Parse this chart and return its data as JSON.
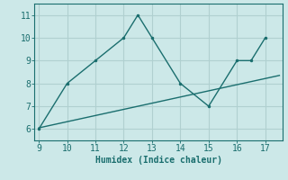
{
  "xlabel": "Humidex (Indice chaleur)",
  "bg_color": "#cce8e8",
  "grid_color": "#b0d0d0",
  "line_color": "#1a6e6e",
  "line1_x": [
    9,
    10,
    11,
    12,
    12.5,
    13,
    14,
    15,
    16,
    16.5,
    17
  ],
  "line1_y": [
    6,
    8,
    9,
    10,
    11,
    10,
    8,
    7,
    9,
    9,
    10
  ],
  "line2_x": [
    9,
    17.5
  ],
  "line2_y": [
    6.05,
    8.35
  ],
  "xlim": [
    8.85,
    17.6
  ],
  "ylim": [
    5.5,
    11.5
  ],
  "xticks": [
    9,
    10,
    11,
    12,
    13,
    14,
    15,
    16,
    17
  ],
  "yticks": [
    6,
    7,
    8,
    9,
    10,
    11
  ],
  "marker_size": 3,
  "line_width": 1.0,
  "label_fontsize": 7,
  "tick_fontsize": 7
}
